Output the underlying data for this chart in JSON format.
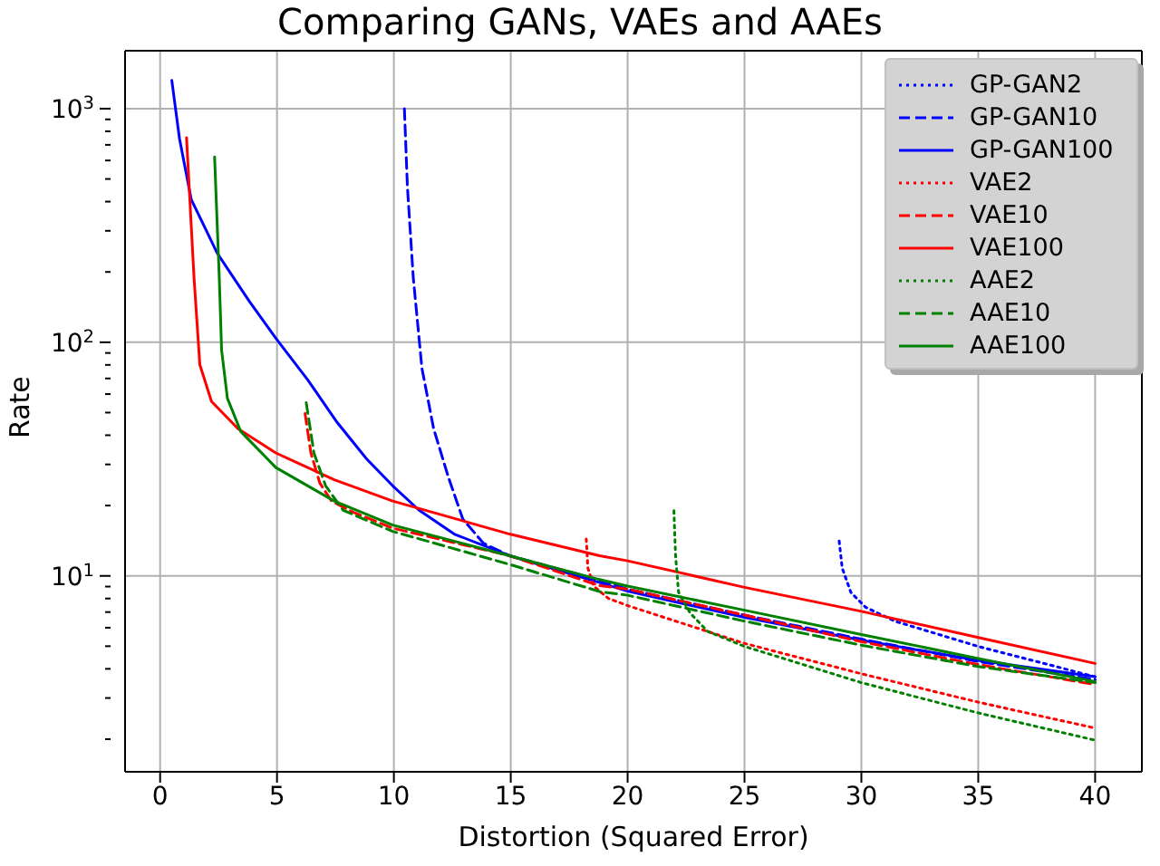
{
  "chart_data": {
    "type": "line",
    "title": "Comparing GANs, VAEs and AAEs",
    "xlabel": "Distortion (Squared Error)",
    "ylabel": "Rate",
    "log": "y",
    "grid": true,
    "legend": "top right",
    "marker": "none",
    "xlim": [
      -1.5,
      42
    ],
    "xticks": [
      0,
      5,
      10,
      15,
      20,
      25,
      30,
      35,
      40
    ],
    "ylim": [
      1.45,
      1770
    ],
    "yticks": [
      {
        "value": 2,
        "label": null
      },
      {
        "value": 3,
        "label": null
      },
      {
        "value": 4,
        "label": null
      },
      {
        "value": 5,
        "label": null
      },
      {
        "value": 6,
        "label": null
      },
      {
        "value": 7,
        "label": null
      },
      {
        "value": 8,
        "label": null
      },
      {
        "value": 9,
        "label": null
      },
      {
        "value": 10,
        "label": "10$^{1}$"
      },
      {
        "value": 20,
        "label": null
      },
      {
        "value": 30,
        "label": null
      },
      {
        "value": 40,
        "label": null
      },
      {
        "value": 50,
        "label": null
      },
      {
        "value": 60,
        "label": null
      },
      {
        "value": 70,
        "label": null
      },
      {
        "value": 80,
        "label": null
      },
      {
        "value": 90,
        "label": null
      },
      {
        "value": 100,
        "label": "10$^{2}$"
      },
      {
        "value": 200,
        "label": null
      },
      {
        "value": 300,
        "label": null
      },
      {
        "value": 400,
        "label": null
      },
      {
        "value": 500,
        "label": null
      },
      {
        "value": 600,
        "label": null
      },
      {
        "value": 700,
        "label": null
      },
      {
        "value": 800,
        "label": null
      },
      {
        "value": 900,
        "label": null
      },
      {
        "value": 1000,
        "label": "10$^{3}$"
      }
    ],
    "series": [
      {
        "name": "GP-GAN2",
        "color": "#0000ff",
        "line_style": "dotted",
        "x": [
          29.05,
          29.18,
          29.55,
          30.18,
          31.43,
          35,
          40
        ],
        "values": [
          14.1,
          10.8,
          8.5,
          7.34,
          6.4,
          4.99,
          3.7
        ]
      },
      {
        "name": "GP-GAN10",
        "color": "#0000ff",
        "line_style": "dashed",
        "x": [
          10.45,
          10.58,
          10.83,
          11.2,
          11.7,
          12.33,
          12.95,
          13.83,
          14.95,
          18.8,
          20,
          25,
          30,
          35,
          40
        ],
        "values": [
          1000,
          461,
          189,
          77.4,
          42.7,
          26.5,
          17.5,
          13.8,
          12.2,
          9.6,
          8.77,
          6.79,
          5.36,
          4.3,
          3.6
        ]
      },
      {
        "name": "GP-GAN100",
        "color": "#0000ff",
        "line_style": "solid",
        "x": [
          0.5,
          0.83,
          1.33,
          2.45,
          3.83,
          4.95,
          6.33,
          7.58,
          8.83,
          9.95,
          11.08,
          12.58,
          14.95,
          18.8,
          20,
          25,
          30,
          35,
          40
        ],
        "values": [
          1320,
          743,
          409,
          240,
          149,
          104,
          68.7,
          45.3,
          31.7,
          24.3,
          19.1,
          15.1,
          12.2,
          9.36,
          8.6,
          6.64,
          5.3,
          4.35,
          3.7
        ]
      },
      {
        "name": "VAE2",
        "color": "#ff0000",
        "line_style": "dotted",
        "x": [
          18.23,
          18.3,
          18.55,
          19.18,
          20,
          25,
          30,
          35,
          40
        ],
        "values": [
          14.4,
          10.8,
          9.04,
          8,
          7.46,
          5.14,
          3.81,
          2.88,
          2.23
        ]
      },
      {
        "name": "VAE10",
        "color": "#ff0000",
        "line_style": "dashed",
        "x": [
          6.2,
          6.45,
          6.83,
          7.33,
          8.33,
          9.95,
          14.95,
          18.8,
          20,
          25,
          30,
          35,
          40
        ],
        "values": [
          49.6,
          33.6,
          25,
          20.9,
          18.6,
          16,
          12.2,
          9.08,
          8.77,
          6.79,
          5.23,
          4.17,
          3.43
        ]
      },
      {
        "name": "VAE100",
        "color": "#ff0000",
        "line_style": "solid",
        "x": [
          1.13,
          1.45,
          1.7,
          2.2,
          3.33,
          4.95,
          7.45,
          9.95,
          14.95,
          18.8,
          20,
          25,
          30,
          35,
          40
        ],
        "values": [
          751,
          189,
          80,
          55.8,
          42.7,
          33.6,
          25.8,
          20.9,
          15.1,
          12.2,
          11.6,
          8.93,
          7.05,
          5.45,
          4.22
        ]
      },
      {
        "name": "AAE2",
        "color": "#008000",
        "line_style": "dotted",
        "x": [
          21.98,
          22.05,
          22.18,
          22.68,
          23.43,
          25,
          30,
          35,
          40
        ],
        "values": [
          19,
          12.2,
          8.5,
          6.92,
          5.78,
          4.99,
          3.49,
          2.59,
          1.98
        ]
      },
      {
        "name": "AAE10",
        "color": "#008000",
        "line_style": "dashed",
        "x": [
          6.25,
          6.58,
          7.08,
          7.83,
          9.95,
          14.95,
          18.8,
          20,
          25,
          30,
          35,
          40
        ],
        "values": [
          55.2,
          33.6,
          24.3,
          19.1,
          15.5,
          11.2,
          8.57,
          8.26,
          6.4,
          5.05,
          4.09,
          3.49
        ]
      },
      {
        "name": "AAE100",
        "color": "#008000",
        "line_style": "solid",
        "x": [
          2.33,
          2.53,
          2.63,
          2.88,
          3.45,
          4.95,
          7.45,
          9.95,
          14.95,
          18.8,
          20,
          25,
          30,
          35,
          40
        ],
        "values": [
          621,
          189,
          92.5,
          57.5,
          41.5,
          29.1,
          20.9,
          16.5,
          12.2,
          9.64,
          9.04,
          7.13,
          5.61,
          4.43,
          3.53
        ]
      }
    ]
  }
}
